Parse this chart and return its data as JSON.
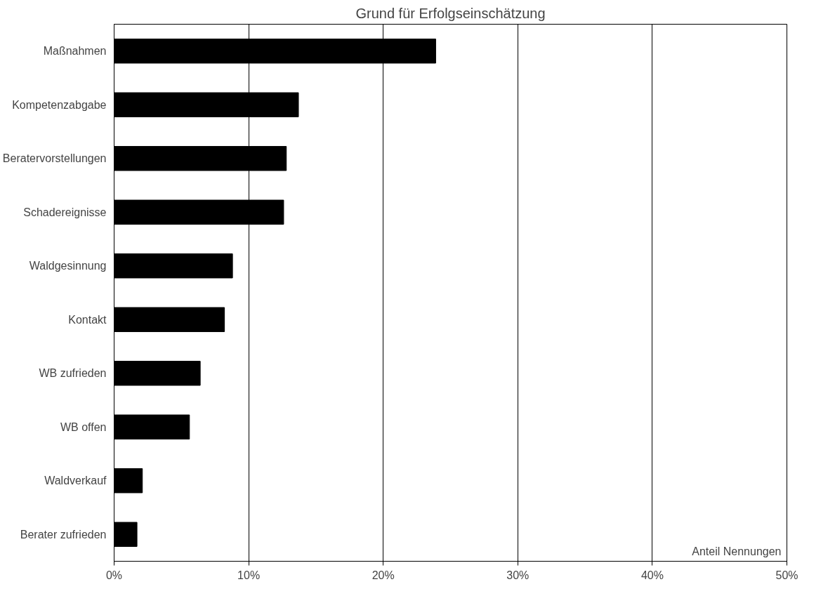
{
  "chart_data": {
    "type": "bar",
    "orientation": "horizontal",
    "title": "Grund für Erfolgseinschätzung",
    "xlabel": "Anteil Nennungen",
    "categories": [
      "Maßnahmen",
      "Kompetenzabgabe",
      "Beratervorstellungen",
      "Schadereignisse",
      "Waldgesinnung",
      "Kontakt",
      "WB zufrieden",
      "WB offen",
      "Waldverkauf",
      "Berater zufrieden"
    ],
    "values": [
      23.9,
      13.7,
      12.8,
      12.6,
      8.8,
      8.2,
      6.4,
      5.6,
      2.1,
      1.7
    ],
    "color": "#000000",
    "xlim": [
      0,
      50
    ],
    "xticks": [
      {
        "value": 0,
        "label": "0%"
      },
      {
        "value": 10,
        "label": "10%"
      },
      {
        "value": 20,
        "label": "20%"
      },
      {
        "value": 30,
        "label": "30%"
      },
      {
        "value": 40,
        "label": "40%"
      },
      {
        "value": 50,
        "label": "50%"
      }
    ],
    "grid": "x"
  }
}
